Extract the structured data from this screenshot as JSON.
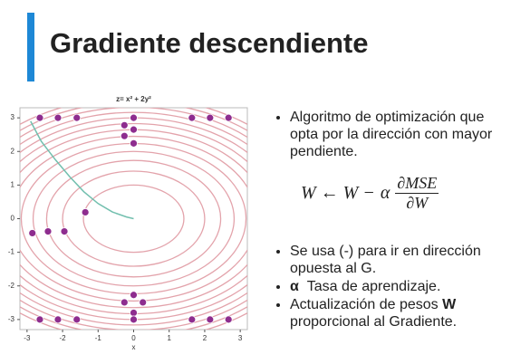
{
  "title": "Gradiente descendiente",
  "chart_data": {
    "type": "contour",
    "title": "z= x² + 2y²",
    "xlabel": "x",
    "xlim": [
      -3.2,
      3.2
    ],
    "ylim": [
      -3.3,
      3.3
    ],
    "xticks": [
      -3,
      -2,
      -1,
      0,
      1,
      2,
      3
    ],
    "yticks": [
      3,
      2,
      1,
      0,
      -1,
      -2,
      -3
    ],
    "levels": [
      2,
      4,
      6,
      8,
      10,
      12,
      14,
      16,
      18,
      20,
      22,
      24,
      26
    ],
    "contour_color": "#e3a3ab",
    "points": {
      "color": "#8e2d8f",
      "x": [
        -2.64,
        -2.13,
        -1.6,
        0,
        1.64,
        2.15,
        2.67,
        -0.26,
        0,
        -0.26,
        0,
        -2.85,
        -2.41,
        -1.95,
        -1.36,
        0,
        -0.26,
        0.26,
        0,
        -2.64,
        -2.13,
        -1.6,
        0,
        1.64,
        2.15,
        2.67
      ],
      "y": [
        3,
        3,
        3,
        3,
        3,
        3,
        3,
        2.78,
        2.65,
        2.46,
        2.24,
        -0.43,
        -0.38,
        -0.38,
        0.19,
        -2.27,
        -2.49,
        -2.49,
        -2.8,
        -3,
        -3,
        -3,
        -3,
        -3,
        -3,
        -3
      ]
    },
    "path": {
      "color": "#72bfae",
      "x": [
        -2.9,
        -2.6,
        -2.2,
        -1.8,
        -1.4,
        -1.0,
        -0.6,
        -0.2,
        0
      ],
      "y": [
        2.9,
        2.3,
        1.75,
        1.25,
        0.8,
        0.45,
        0.2,
        0.05,
        0
      ]
    }
  },
  "bullets_top": [
    "Algoritmo de optimización que opta por la dirección con mayor pendiente."
  ],
  "formula": {
    "left": "W ← W −",
    "alpha": "α",
    "num": "∂MSE",
    "den": "∂W"
  },
  "bullets_bottom": [
    {
      "text": "Se usa (-) para ir en dirección opuesta al G."
    },
    {
      "bold": "α",
      "text": "Tasa de aprendizaje."
    },
    {
      "text": "Actualización de pesos",
      "bold": "W",
      "rest": "proporcional al Gradiente."
    }
  ]
}
